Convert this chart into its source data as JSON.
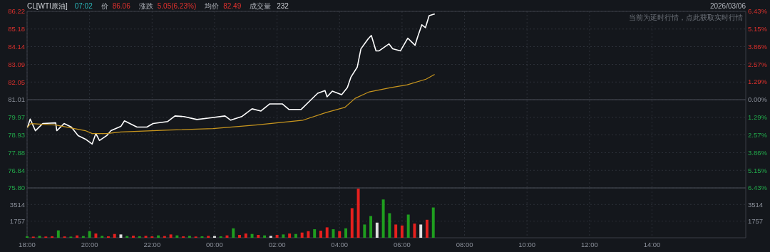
{
  "chart_data": [
    {
      "type": "line",
      "title": "CL[WTI原油]",
      "annotations": [
        "07:02",
        "价",
        "86.06",
        "涨跌",
        "5.05(6.23%)",
        "均价",
        "82.49",
        "成交量",
        "232",
        "2026/03/06",
        "当前为延时行情，点此获取实时行情"
      ],
      "series": [
        {
          "color": "#ffffff",
          "x": [
            "2026-03-05T18:01",
            "2026-03-05T18:06",
            "2026-03-05T18:16",
            "2026-03-05T18:30",
            "2026-03-05T18:55",
            "2026-03-05T18:57",
            "2026-03-05T19:11",
            "2026-03-05T19:25",
            "2026-03-05T19:38",
            "2026-03-05T19:52",
            "2026-03-05T20:05",
            "2026-03-05T20:12",
            "2026-03-05T20:19",
            "2026-03-05T20:33",
            "2026-03-05T20:41",
            "2026-03-05T21:00",
            "2026-03-05T21:07",
            "2026-03-05T21:31",
            "2026-03-05T21:50",
            "2026-03-05T22:02",
            "2026-03-05T22:30",
            "2026-03-05T22:44",
            "2026-03-05T23:01",
            "2026-03-05T23:26",
            "2026-03-05T23:50",
            "2026-03-06T00:20",
            "2026-03-06T00:31",
            "2026-03-06T00:52",
            "2026-03-06T01:12",
            "2026-03-06T01:29",
            "2026-03-06T01:46",
            "2026-03-06T02:10",
            "2026-03-06T02:23",
            "2026-03-06T02:46",
            "2026-03-06T03:04",
            "2026-03-06T03:18",
            "2026-03-06T03:32",
            "2026-03-06T03:36",
            "2026-03-06T03:46",
            "2026-03-06T04:04",
            "2026-03-06T04:15",
            "2026-03-06T04:22",
            "2026-03-06T04:34",
            "2026-03-06T04:41",
            "2026-03-06T04:55",
            "2026-03-06T05:01",
            "2026-03-06T05:10",
            "2026-03-06T05:16",
            "2026-03-06T05:35",
            "2026-03-06T05:42",
            "2026-03-06T05:57",
            "2026-03-06T06:11",
            "2026-03-06T06:25",
            "2026-03-06T06:30",
            "2026-03-06T06:38",
            "2026-03-06T06:45",
            "2026-03-06T06:52",
            "2026-03-06T07:02"
          ],
          "values": [
            79.39,
            79.86,
            79.18,
            79.6,
            79.64,
            79.18,
            79.6,
            79.39,
            78.89,
            78.68,
            78.39,
            79.01,
            78.6,
            78.89,
            79.18,
            79.43,
            79.76,
            79.39,
            79.39,
            79.6,
            79.72,
            80.05,
            80.01,
            79.84,
            79.93,
            80.05,
            79.8,
            80.01,
            80.47,
            80.34,
            80.76,
            80.76,
            80.43,
            80.43,
            80.97,
            81.39,
            81.55,
            81.18,
            81.51,
            81.3,
            81.72,
            82.35,
            82.93,
            84.01,
            84.6,
            84.8,
            83.89,
            83.89,
            84.3,
            84.01,
            83.89,
            84.64,
            84.22,
            84.72,
            85.43,
            85.26,
            85.97,
            86.06
          ]
        },
        {
          "color": "#c8961e",
          "x": [
            "2026-03-05T18:01",
            "2026-03-05T18:07",
            "2026-03-05T18:55",
            "2026-03-05T19:52",
            "2026-03-05T20:05",
            "2026-03-05T20:33",
            "2026-03-05T21:00",
            "2026-03-05T22:35",
            "2026-03-05T23:57",
            "2026-03-06T01:19",
            "2026-03-06T02:50",
            "2026-03-06T03:35",
            "2026-03-06T04:10",
            "2026-03-06T04:30",
            "2026-03-06T04:57",
            "2026-03-06T05:38",
            "2026-03-06T06:10",
            "2026-03-06T06:46",
            "2026-03-06T07:02"
          ],
          "values": [
            79.39,
            79.6,
            79.51,
            79.18,
            79.01,
            79.01,
            79.1,
            79.22,
            79.3,
            79.51,
            79.8,
            80.26,
            80.55,
            81.09,
            81.47,
            81.72,
            81.89,
            82.22,
            82.49
          ]
        }
      ],
      "xlim": [
        "2026-03-05T18:00",
        "2026-03-06T17:00"
      ],
      "xticks": [
        {
          "value": "2026-03-05T18:00",
          "label": null
        },
        {
          "value": "2026-03-05T20:00",
          "label": null
        },
        {
          "value": "2026-03-05T22:00",
          "label": null
        },
        {
          "value": "2026-03-06T00:00",
          "label": null
        },
        {
          "value": "2026-03-06T02:00",
          "label": null
        },
        {
          "value": "2026-03-06T04:00",
          "label": null
        },
        {
          "value": "2026-03-06T06:00",
          "label": null
        },
        {
          "value": "2026-03-06T08:00",
          "label": null
        },
        {
          "value": "2026-03-06T10:00",
          "label": null
        },
        {
          "value": "2026-03-06T12:00",
          "label": null
        },
        {
          "value": "2026-03-06T14:00",
          "label": null
        }
      ],
      "ylim": [
        75.8,
        86.22
      ],
      "yticks": [
        {
          "value": 75.8,
          "label": "75.80"
        },
        76.84,
        77.88,
        78.93,
        79.97,
        81.01,
        82.05,
        83.09,
        84.14,
        85.18,
        86.22
      ],
      "y2lim": [
        -6.43,
        6.43
      ],
      "y2ticks": [
        {
          "value": -6.43,
          "label": "6.43%"
        },
        {
          "value": -5.15,
          "label": "5.15%"
        },
        {
          "value": -3.86,
          "label": "3.86%"
        },
        {
          "value": -2.57,
          "label": "2.57%"
        },
        {
          "value": -1.29,
          "label": "1.29%"
        },
        {
          "value": 0,
          "label": "0.00%"
        },
        {
          "value": 1.29,
          "label": "1.29%"
        },
        {
          "value": 2.57,
          "label": "2.57%"
        },
        {
          "value": 3.86,
          "label": "3.86%"
        },
        {
          "value": 5.15,
          "label": "5.15%"
        },
        {
          "value": 6.43,
          "label": "6.43%"
        }
      ],
      "ref_lines": [
        {
          "axis": "y",
          "value": 81.01,
          "color": "#3a3e46"
        }
      ],
      "grid": true,
      "tick_labels": "y"
    },
    {
      "type": "bar",
      "x": [
        "2026-03-05T18:00",
        "2026-03-05T18:12",
        "2026-03-05T18:24",
        "2026-03-05T18:36",
        "2026-03-05T18:48",
        "2026-03-05T19:00",
        "2026-03-05T19:12",
        "2026-03-05T19:24",
        "2026-03-05T19:36",
        "2026-03-05T19:48",
        "2026-03-05T20:00",
        "2026-03-05T20:12",
        "2026-03-05T20:24",
        "2026-03-05T20:36",
        "2026-03-05T20:48",
        "2026-03-05T21:00",
        "2026-03-05T21:12",
        "2026-03-05T21:24",
        "2026-03-05T21:36",
        "2026-03-05T21:48",
        "2026-03-05T22:00",
        "2026-03-05T22:12",
        "2026-03-05T22:24",
        "2026-03-05T22:36",
        "2026-03-05T22:48",
        "2026-03-05T23:00",
        "2026-03-05T23:12",
        "2026-03-05T23:24",
        "2026-03-05T23:36",
        "2026-03-05T23:48",
        "2026-03-06T00:00",
        "2026-03-06T00:12",
        "2026-03-06T00:24",
        "2026-03-06T00:36",
        "2026-03-06T00:48",
        "2026-03-06T01:00",
        "2026-03-06T01:12",
        "2026-03-06T01:24",
        "2026-03-06T01:36",
        "2026-03-06T01:48",
        "2026-03-06T02:00",
        "2026-03-06T02:12",
        "2026-03-06T02:24",
        "2026-03-06T02:36",
        "2026-03-06T02:48",
        "2026-03-06T03:00",
        "2026-03-06T03:12",
        "2026-03-06T03:24",
        "2026-03-06T03:36",
        "2026-03-06T03:48",
        "2026-03-06T04:00",
        "2026-03-06T04:12",
        "2026-03-06T04:24",
        "2026-03-06T04:36",
        "2026-03-06T04:48",
        "2026-03-06T05:00",
        "2026-03-06T05:12",
        "2026-03-06T05:24",
        "2026-03-06T05:36",
        "2026-03-06T05:48",
        "2026-03-06T06:00",
        "2026-03-06T06:12",
        "2026-03-06T06:24",
        "2026-03-06T06:36",
        "2026-03-06T06:48",
        "2026-03-06T07:00"
      ],
      "values": [
        150,
        120,
        200,
        130,
        160,
        780,
        140,
        120,
        250,
        180,
        700,
        450,
        200,
        150,
        400,
        350,
        180,
        220,
        160,
        200,
        150,
        250,
        180,
        350,
        250,
        150,
        200,
        130,
        150,
        200,
        180,
        150,
        250,
        1000,
        300,
        450,
        400,
        300,
        250,
        200,
        300,
        350,
        450,
        400,
        550,
        700,
        900,
        750,
        1100,
        900,
        700,
        1000,
        3130,
        5200,
        1400,
        2300,
        1600,
        4050,
        2600,
        1400,
        1300,
        2450,
        1500,
        1400,
        1900,
        3200
      ],
      "colors": [
        "#1f9e1f",
        "#e5201e",
        "#1f9e1f",
        "#e5201e",
        "#e5201e",
        "#1f9e1f",
        "#e5201e",
        "#1f9e1f",
        "#e5201e",
        "#1f9e1f",
        "#1f9e1f",
        "#e5201e",
        "#1f9e1f",
        "#e5201e",
        "#e5201e",
        "#e0e0e0",
        "#1f9e1f",
        "#e5201e",
        "#1f9e1f",
        "#e5201e",
        "#e5201e",
        "#1f9e1f",
        "#e5201e",
        "#e5201e",
        "#1f9e1f",
        "#e5201e",
        "#1f9e1f",
        "#e5201e",
        "#1f9e1f",
        "#e5201e",
        "#e0e0e0",
        "#1f9e1f",
        "#e5201e",
        "#1f9e1f",
        "#e5201e",
        "#e5201e",
        "#1f9e1f",
        "#e5201e",
        "#1f9e1f",
        "#e0e0e0",
        "#e5201e",
        "#1f9e1f",
        "#e5201e",
        "#1f9e1f",
        "#e5201e",
        "#e5201e",
        "#1f9e1f",
        "#e5201e",
        "#e5201e",
        "#1f9e1f",
        "#e5201e",
        "#1f9e1f",
        "#e5201e",
        "#e5201e",
        "#1f9e1f",
        "#1f9e1f",
        "#e0e0e0",
        "#1f9e1f",
        "#1f9e1f",
        "#e5201e",
        "#e5201e",
        "#1f9e1f",
        "#e5201e",
        "#e0e0e0",
        "#e5201e",
        "#1f9e1f"
      ],
      "xlim": [
        "2026-03-05T18:00",
        "2026-03-06T17:00"
      ],
      "xticks": [
        {
          "value": "2026-03-05T18:00",
          "label": "18:00"
        },
        {
          "value": "2026-03-05T20:00",
          "label": "20:00"
        },
        {
          "value": "2026-03-05T22:00",
          "label": "22:00"
        },
        {
          "value": "2026-03-06T00:00",
          "label": "00:00"
        },
        {
          "value": "2026-03-06T02:00",
          "label": "02:00"
        },
        {
          "value": "2026-03-06T04:00",
          "label": "04:00"
        },
        {
          "value": "2026-03-06T06:00",
          "label": "06:00"
        },
        {
          "value": "2026-03-06T08:00",
          "label": "08:00"
        },
        {
          "value": "2026-03-06T10:00",
          "label": "10:00"
        },
        {
          "value": "2026-03-06T12:00",
          "label": "12:00"
        },
        {
          "value": "2026-03-06T14:00",
          "label": "14:00"
        }
      ],
      "ylim": [
        0,
        5271
      ],
      "yticks": [
        1757,
        3514
      ],
      "y2lim": [
        0,
        5271
      ],
      "y2ticks": [
        1757,
        3514
      ],
      "grid": true
    }
  ]
}
